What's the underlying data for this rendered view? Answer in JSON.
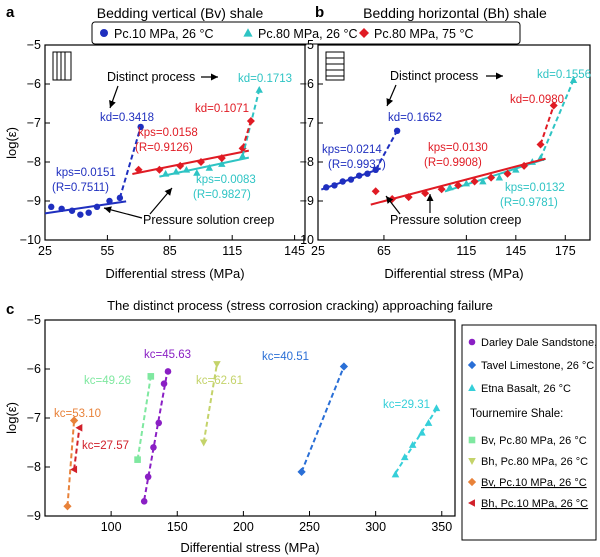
{
  "colors": {
    "pc10_26": "#1f2fbf",
    "pc80_26": "#2ec4c4",
    "pc80_75": "#e01b24",
    "purple": "#8a1fc4",
    "blue": "#2a6fd6",
    "cyan": "#35cfd9",
    "green": "#7fe8a0",
    "olive": "#c4d36a",
    "orange": "#e8823a",
    "red": "#d1202a"
  },
  "legend_top": [
    {
      "label": "Pc.10 MPa, 26 °C",
      "color": "#1f2fbf",
      "marker": "circle"
    },
    {
      "label": "Pc.80 MPa, 26 °C",
      "color": "#2ec4c4",
      "marker": "triangle-up"
    },
    {
      "label": "Pc.80 MPa, 75 °C",
      "color": "#e01b24",
      "marker": "diamond"
    }
  ],
  "chart_data": [
    {
      "panel": "a",
      "type": "scatter",
      "title": "Bedding vertical (Bv) shale",
      "xlabel": "Differential stress (MPa)",
      "ylabel": "log(ε̇)",
      "xlim": [
        25,
        150
      ],
      "ylim": [
        -10,
        -5
      ],
      "xticks": [
        25,
        55,
        85,
        115,
        145
      ],
      "yticks": [
        -5,
        -6,
        -7,
        -8,
        -9,
        -10
      ],
      "series": [
        {
          "key": "pc10_26",
          "marker": "circle",
          "x": [
            28,
            33,
            38,
            42,
            46,
            50,
            56,
            61
          ],
          "y": [
            -9.15,
            -9.2,
            -9.25,
            -9.35,
            -9.3,
            -9.15,
            -9.0,
            -8.92
          ]
        },
        {
          "key": "pc80_26",
          "marker": "triangle-up",
          "x": [
            83,
            88,
            93,
            98,
            104,
            110,
            120
          ],
          "y": [
            -8.3,
            -8.25,
            -8.2,
            -8.28,
            -8.15,
            -8.05,
            -7.85
          ]
        },
        {
          "key": "pc80_75",
          "marker": "diamond",
          "x": [
            70,
            80,
            90,
            100,
            110,
            120
          ],
          "y": [
            -8.2,
            -8.2,
            -8.1,
            -8.0,
            -7.9,
            -7.65
          ]
        }
      ],
      "extras": [
        {
          "key": "pc10_26",
          "marker": "circle",
          "x": 71,
          "y": -7.1
        },
        {
          "key": "pc80_26",
          "marker": "triangle-up",
          "x": 128,
          "y": -6.15
        },
        {
          "key": "pc80_75",
          "marker": "diamond",
          "x": 124,
          "y": -6.95
        }
      ],
      "annotations": [
        {
          "text": "Distinct process",
          "color": "#000000"
        },
        {
          "text": "Pressure solution creep",
          "color": "#000000"
        },
        {
          "text": "kd=0.3418",
          "color": "#1f2fbf"
        },
        {
          "text": "kd=0.1071",
          "color": "#e01b24"
        },
        {
          "text": "kd=0.1713",
          "color": "#2ec4c4"
        },
        {
          "text": "kps=0.0151",
          "color": "#1f2fbf"
        },
        {
          "text": "(R=0.7511)",
          "color": "#1f2fbf"
        },
        {
          "text": "kps=0.0158",
          "color": "#e01b24"
        },
        {
          "text": "(R=0.9126)",
          "color": "#e01b24"
        },
        {
          "text": "kps=0.0083",
          "color": "#2ec4c4"
        },
        {
          "text": "(R=0.9827)",
          "color": "#2ec4c4"
        }
      ]
    },
    {
      "panel": "b",
      "type": "scatter",
      "title": "Bedding horizontal (Bh) shale",
      "xlabel": "Differential stress (MPa)",
      "ylabel": "",
      "xlim": [
        25,
        190
      ],
      "ylim": [
        -10,
        -5
      ],
      "xticks": [
        25,
        65,
        115,
        145,
        175
      ],
      "xticklabels": [
        "25",
        "65",
        "115",
        "145",
        "175"
      ],
      "yticks": [
        -5,
        -6,
        -7,
        -8,
        -9,
        -10
      ],
      "series": [
        {
          "key": "pc10_26",
          "marker": "circle",
          "x": [
            30,
            35,
            40,
            45,
            50,
            55,
            60
          ],
          "y": [
            -8.65,
            -8.6,
            -8.5,
            -8.45,
            -8.35,
            -8.3,
            -8.2
          ]
        },
        {
          "key": "pc80_26",
          "marker": "triangle-up",
          "x": [
            105,
            115,
            125,
            135,
            145,
            155,
            160
          ],
          "y": [
            -8.65,
            -8.55,
            -8.5,
            -8.4,
            -8.2,
            -8.0,
            -7.9
          ]
        },
        {
          "key": "pc80_75",
          "marker": "diamond",
          "x": [
            60,
            70,
            80,
            90,
            100,
            110,
            120,
            130,
            140,
            150,
            160
          ],
          "y": [
            -8.75,
            -8.95,
            -8.9,
            -8.8,
            -8.7,
            -8.6,
            -8.5,
            -8.4,
            -8.3,
            -8.1,
            -7.55
          ]
        }
      ],
      "extras": [
        {
          "key": "pc10_26",
          "marker": "circle",
          "x": 73,
          "y": -7.2
        },
        {
          "key": "pc80_26",
          "marker": "triangle-up",
          "x": 180,
          "y": -5.9
        },
        {
          "key": "pc80_75",
          "marker": "diamond",
          "x": 168,
          "y": -6.55
        }
      ],
      "annotations": [
        {
          "text": "Distinct process",
          "color": "#000000"
        },
        {
          "text": "Pressure solution creep",
          "color": "#000000"
        },
        {
          "text": "kd=0.1652",
          "color": "#1f2fbf"
        },
        {
          "text": "kd=0.0980",
          "color": "#e01b24"
        },
        {
          "text": "kd=0.1556",
          "color": "#2ec4c4"
        },
        {
          "text": "kps=0.0214",
          "color": "#1f2fbf"
        },
        {
          "text": "(R=0.9937)",
          "color": "#1f2fbf"
        },
        {
          "text": "kps=0.0130",
          "color": "#e01b24"
        },
        {
          "text": "(R=0.9908)",
          "color": "#e01b24"
        },
        {
          "text": "kps=0.0132",
          "color": "#2ec4c4"
        },
        {
          "text": "(R=0.9781)",
          "color": "#2ec4c4"
        }
      ]
    },
    {
      "panel": "c",
      "type": "line",
      "title": "The distinct process (stress corrosion cracking) approaching failure",
      "xlabel": "Differential stress (MPa)",
      "ylabel": "log(ε̇)",
      "xlim": [
        50,
        360
      ],
      "ylim": [
        -9,
        -5
      ],
      "xticks": [
        100,
        150,
        200,
        250,
        300,
        350
      ],
      "yticks": [
        -5,
        -6,
        -7,
        -8,
        -9
      ],
      "series": [
        {
          "name": "Darley Dale Sandstone, 20 °C",
          "key": "purple",
          "marker": "circle",
          "x": [
            125,
            128,
            132,
            136,
            140,
            143
          ],
          "y": [
            -8.7,
            -8.2,
            -7.6,
            -7.1,
            -6.3,
            -6.05
          ]
        },
        {
          "name": "Tavel Limestone, 26 °C",
          "key": "blue",
          "marker": "diamond",
          "x": [
            244,
            276
          ],
          "y": [
            -8.1,
            -5.95
          ]
        },
        {
          "name": "Etna Basalt, 26 °C",
          "key": "cyan",
          "marker": "triangle-up",
          "x": [
            315,
            322,
            328,
            335,
            340,
            346
          ],
          "y": [
            -8.15,
            -7.8,
            -7.55,
            -7.3,
            -7.1,
            -6.8
          ]
        },
        {
          "name": "Bv, Pc.80 MPa, 26 °C",
          "key": "green",
          "marker": "square",
          "x": [
            120,
            130
          ],
          "y": [
            -7.85,
            -6.15
          ]
        },
        {
          "name": "Bh, Pc.80 MPa, 26 °C",
          "key": "olive",
          "marker": "triangle-down",
          "x": [
            170,
            180
          ],
          "y": [
            -7.5,
            -5.9
          ]
        },
        {
          "name": "Bv, Pc.10 MPa, 26 °C",
          "key": "orange",
          "marker": "diamond",
          "x": [
            67,
            72
          ],
          "y": [
            -8.8,
            -7.05
          ]
        },
        {
          "name": "Bh, Pc.10 MPa, 26 °C",
          "key": "red",
          "marker": "triangle-left",
          "x": [
            72,
            76
          ],
          "y": [
            -8.05,
            -7.2
          ]
        }
      ],
      "annotations": [
        {
          "text": "kc=45.63",
          "color": "#8a1fc4"
        },
        {
          "text": "kc=40.51",
          "color": "#2a6fd6"
        },
        {
          "text": "kc=49.26",
          "color": "#7fe8a0"
        },
        {
          "text": "kc=62.61",
          "color": "#c4d36a"
        },
        {
          "text": "kc=53.10",
          "color": "#e8823a"
        },
        {
          "text": "kc=27.57",
          "color": "#d1202a"
        },
        {
          "text": "kc=29.31",
          "color": "#35cfd9"
        }
      ],
      "legend_heading": "Tournemire Shale:"
    }
  ],
  "labels": {
    "a": "a",
    "b": "b",
    "c": "c"
  }
}
